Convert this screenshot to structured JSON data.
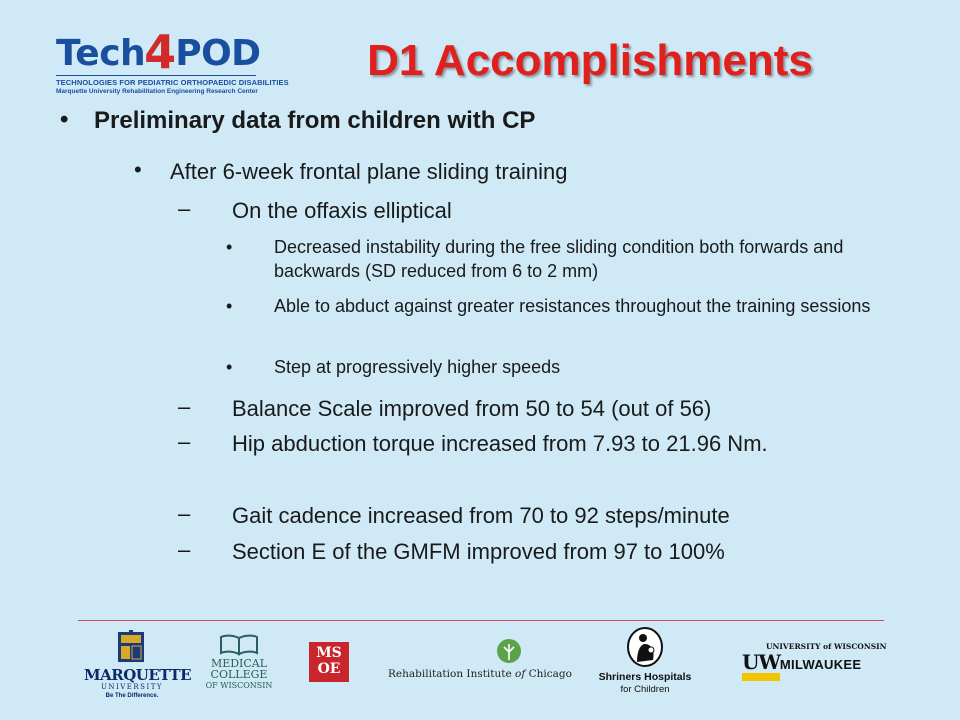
{
  "header": {
    "brand_tech": "Tech",
    "brand_four": "4",
    "brand_pod": "POD",
    "brand_tagline": "TECHNOLOGIES FOR PEDIATRIC ORTHOPAEDIC DISABILITIES",
    "brand_subline": "Marquette University Rehabilitation Engineering Research Center",
    "title": "D1 Accomplishments"
  },
  "content": {
    "level1": {
      "bullet": "•",
      "text": "Preliminary data from children with CP"
    },
    "level2": {
      "bullet": "•",
      "text": "After 6-week frontal plane sliding training"
    },
    "dash": "–",
    "elliptical": "On the offaxis elliptical",
    "sub_bullet": "•",
    "sub_items": [
      "Decreased instability during the free sliding condition both forwards and backwards (SD reduced from 6 to 2 mm)",
      "Able to abduct against greater resistances throughout the training sessions",
      "Step at progressively higher speeds"
    ],
    "results": [
      "Balance Scale improved from 50 to 54 (out of 56)",
      "Hip abduction torque increased from 7.93 to 21.96 Nm.",
      "Gait cadence increased from 70 to 92 steps/minute",
      "Section E of the GMFM improved from 97 to 100%"
    ]
  },
  "footer": {
    "marquette_name": "MARQUETTE",
    "marquette_university": "UNIVERSITY",
    "marquette_slogan": "Be The Difference.",
    "mcw_line1": "MEDICAL",
    "mcw_line2": "COLLEGE",
    "mcw_line3": "OF WISCONSIN",
    "msoe_letters": "MSOE",
    "ric_name_a": "Rehabilitation Institute ",
    "ric_name_of": "of",
    "ric_name_b": " Chicago",
    "shriners_line1": "Shriners Hospitals",
    "shriners_line2": "for Children",
    "uwm_top": "UNIVERSITY of WISCONSIN",
    "uwm_uw": "UW",
    "uwm_main": "MILWAUKEE"
  },
  "colors": {
    "background": "#cfe9f6",
    "title_red": "#e0201c",
    "brand_blue": "#1a4fa0",
    "footer_rule": "#c0504d"
  }
}
